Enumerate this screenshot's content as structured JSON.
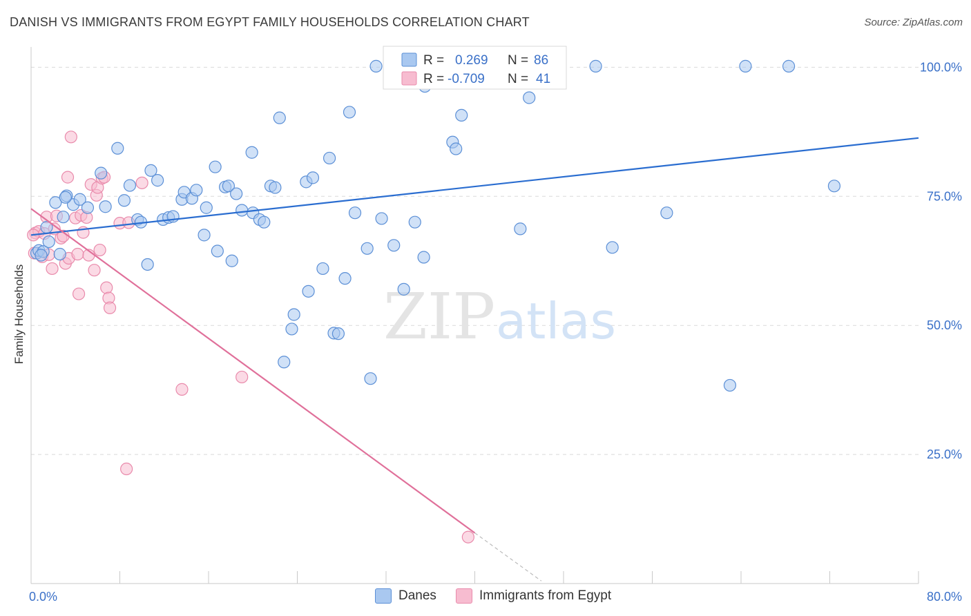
{
  "title": "DANISH VS IMMIGRANTS FROM EGYPT FAMILY HOUSEHOLDS CORRELATION CHART",
  "source": "Source: ZipAtlas.com",
  "watermark": {
    "zip": "ZIP",
    "atlas": "atlas"
  },
  "colors": {
    "danes_fill": "#a9c8f0",
    "danes_stroke": "#5b8fd6",
    "danes_line": "#2a6dd0",
    "egypt_fill": "#f7bcd0",
    "egypt_stroke": "#e98aab",
    "egypt_line": "#e0709a",
    "axis_text": "#3a70c8",
    "grid": "#d9d9d9"
  },
  "stats": [
    {
      "r_label": "R =",
      "r_value": "0.269",
      "n_label": "N =",
      "n_value": "86"
    },
    {
      "r_label": "R =",
      "r_value": "-0.709",
      "n_label": "N =",
      "n_value": "41"
    }
  ],
  "chart_data": {
    "type": "scatter",
    "title": "DANISH VS IMMIGRANTS FROM EGYPT FAMILY HOUSEHOLDS CORRELATION CHART",
    "xlabel": "",
    "ylabel": "Family Households",
    "xlim": [
      0,
      80
    ],
    "ylim": [
      0,
      105
    ],
    "x_tick_labels": [
      "0.0%",
      "80.0%"
    ],
    "y_ticks": [
      25,
      50,
      75,
      100
    ],
    "y_tick_labels": [
      "25.0%",
      "50.0%",
      "75.0%",
      "100.0%"
    ],
    "grid": "horizontal dashed",
    "legend_position": "bottom-center",
    "series": [
      {
        "name": "Danes",
        "r": 0.269,
        "n": 86,
        "trend": {
          "x": [
            0,
            80
          ],
          "y": [
            67.5,
            86.3
          ]
        },
        "points": [
          [
            0.5,
            64.0
          ],
          [
            0.7,
            64.5
          ],
          [
            1.1,
            64.3
          ],
          [
            1.4,
            69.0
          ],
          [
            1.6,
            66.2
          ],
          [
            2.2,
            73.8
          ],
          [
            2.9,
            71.0
          ],
          [
            3.2,
            75.1
          ],
          [
            3.8,
            73.4
          ],
          [
            4.4,
            74.4
          ],
          [
            5.1,
            72.8
          ],
          [
            6.3,
            79.5
          ],
          [
            6.7,
            73.0
          ],
          [
            7.8,
            84.3
          ],
          [
            8.4,
            74.2
          ],
          [
            8.9,
            77.1
          ],
          [
            9.6,
            70.5
          ],
          [
            9.9,
            70.0
          ],
          [
            10.5,
            61.8
          ],
          [
            10.8,
            80.0
          ],
          [
            11.4,
            78.1
          ],
          [
            11.9,
            70.5
          ],
          [
            12.4,
            70.9
          ],
          [
            12.8,
            71.1
          ],
          [
            13.6,
            74.4
          ],
          [
            13.8,
            75.8
          ],
          [
            14.5,
            74.6
          ],
          [
            14.9,
            76.2
          ],
          [
            15.6,
            67.5
          ],
          [
            15.8,
            72.8
          ],
          [
            16.6,
            80.7
          ],
          [
            16.8,
            64.4
          ],
          [
            17.5,
            76.8
          ],
          [
            17.8,
            77.0
          ],
          [
            18.1,
            62.5
          ],
          [
            18.5,
            75.5
          ],
          [
            19.0,
            72.3
          ],
          [
            19.9,
            83.5
          ],
          [
            20.0,
            71.8
          ],
          [
            20.6,
            70.5
          ],
          [
            21.0,
            70.0
          ],
          [
            21.6,
            77.0
          ],
          [
            22.4,
            90.2
          ],
          [
            22.0,
            76.7
          ],
          [
            22.8,
            42.9
          ],
          [
            23.5,
            49.3
          ],
          [
            23.7,
            52.1
          ],
          [
            24.8,
            77.8
          ],
          [
            25.0,
            56.6
          ],
          [
            25.4,
            78.6
          ],
          [
            26.3,
            61.0
          ],
          [
            26.9,
            82.4
          ],
          [
            27.3,
            48.5
          ],
          [
            27.7,
            48.4
          ],
          [
            28.3,
            59.1
          ],
          [
            28.7,
            91.3
          ],
          [
            29.2,
            71.8
          ],
          [
            30.3,
            64.9
          ],
          [
            30.6,
            39.7
          ],
          [
            31.1,
            100.2
          ],
          [
            31.6,
            70.7
          ],
          [
            32.7,
            65.5
          ],
          [
            33.6,
            57.0
          ],
          [
            34.6,
            70.0
          ],
          [
            35.4,
            63.2
          ],
          [
            35.5,
            96.3
          ],
          [
            36.9,
            100.2
          ],
          [
            38.0,
            85.5
          ],
          [
            38.3,
            84.2
          ],
          [
            38.8,
            90.7
          ],
          [
            40.8,
            100.2
          ],
          [
            42.3,
            100.2
          ],
          [
            44.1,
            68.7
          ],
          [
            44.9,
            94.1
          ],
          [
            45.6,
            100.2
          ],
          [
            47.0,
            100.2
          ],
          [
            50.9,
            100.2
          ],
          [
            52.4,
            65.1
          ],
          [
            57.3,
            71.8
          ],
          [
            63.0,
            38.4
          ],
          [
            64.4,
            100.2
          ],
          [
            68.3,
            100.2
          ],
          [
            72.4,
            77.0
          ],
          [
            3.1,
            74.8
          ],
          [
            2.6,
            63.8
          ],
          [
            0.9,
            63.6
          ]
        ]
      },
      {
        "name": "Immigrants from Egypt",
        "r": -0.709,
        "n": 41,
        "trend": {
          "x": [
            0,
            40
          ],
          "y": [
            72.6,
            9.8
          ]
        },
        "trend_dashed": {
          "x": [
            40,
            46
          ],
          "y": [
            9.8,
            0.5
          ]
        },
        "points": [
          [
            0.3,
            64.0
          ],
          [
            0.4,
            67.9
          ],
          [
            0.7,
            68.2
          ],
          [
            1.0,
            63.3
          ],
          [
            1.2,
            67.8
          ],
          [
            1.4,
            71.0
          ],
          [
            1.9,
            61.0
          ],
          [
            2.1,
            68.7
          ],
          [
            2.3,
            71.2
          ],
          [
            2.7,
            66.9
          ],
          [
            3.1,
            62.0
          ],
          [
            3.3,
            78.7
          ],
          [
            3.4,
            63.0
          ],
          [
            3.6,
            86.5
          ],
          [
            4.0,
            70.8
          ],
          [
            4.2,
            63.8
          ],
          [
            4.3,
            56.1
          ],
          [
            4.5,
            71.3
          ],
          [
            4.7,
            68.0
          ],
          [
            5.0,
            70.9
          ],
          [
            5.2,
            63.6
          ],
          [
            5.4,
            77.3
          ],
          [
            5.7,
            60.7
          ],
          [
            5.9,
            75.2
          ],
          [
            6.0,
            76.7
          ],
          [
            6.2,
            64.6
          ],
          [
            6.4,
            78.5
          ],
          [
            6.8,
            57.3
          ],
          [
            7.0,
            55.3
          ],
          [
            7.1,
            53.4
          ],
          [
            8.0,
            69.8
          ],
          [
            8.6,
            22.2
          ],
          [
            8.8,
            69.9
          ],
          [
            10.0,
            77.6
          ],
          [
            13.6,
            37.6
          ],
          [
            19.0,
            40.0
          ],
          [
            39.4,
            9.0
          ],
          [
            2.9,
            67.3
          ],
          [
            1.6,
            63.7
          ],
          [
            6.6,
            78.7
          ],
          [
            0.2,
            67.5
          ]
        ]
      }
    ]
  },
  "legend": {
    "danes": "Danes",
    "egypt": "Immigrants from Egypt"
  }
}
